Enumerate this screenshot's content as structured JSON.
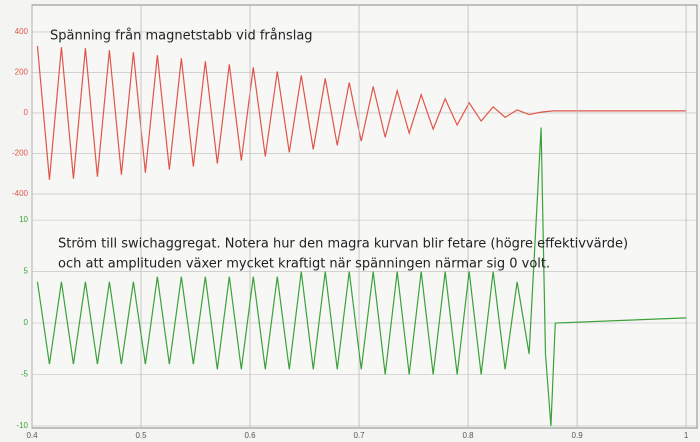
{
  "chart_data": [
    {
      "type": "line",
      "title": "Spänning från magnetstabb vid frånslag",
      "x": [
        0.405,
        0.416,
        0.427,
        0.438,
        0.449,
        0.46,
        0.471,
        0.482,
        0.493,
        0.504,
        0.515,
        0.526,
        0.537,
        0.548,
        0.559,
        0.57,
        0.581,
        0.592,
        0.603,
        0.614,
        0.625,
        0.636,
        0.647,
        0.658,
        0.669,
        0.68,
        0.691,
        0.702,
        0.713,
        0.724,
        0.735,
        0.746,
        0.757,
        0.768,
        0.779,
        0.79,
        0.801,
        0.812,
        0.823,
        0.834,
        0.845,
        0.856,
        0.867,
        0.878,
        1.0
      ],
      "series": [
        {
          "color": "#e0554a",
          "values": [
            330,
            -330,
            325,
            -325,
            320,
            -315,
            310,
            -305,
            300,
            -295,
            285,
            -280,
            270,
            -265,
            255,
            -250,
            240,
            -235,
            225,
            -215,
            205,
            -195,
            185,
            -180,
            170,
            -160,
            150,
            -140,
            130,
            -120,
            110,
            -100,
            90,
            -80,
            70,
            -60,
            50,
            -40,
            30,
            -22,
            15,
            -8,
            4,
            10,
            10
          ]
        }
      ],
      "xlim": [
        0.4,
        1.01
      ],
      "ylim": [
        -1556,
        533
      ],
      "yticks": [
        400,
        200,
        0,
        -200,
        -400
      ],
      "grid": true
    },
    {
      "type": "line",
      "annotation": [
        "Ström till swichaggregat. Notera hur den magra kurvan blir fetare (högre effektivvärde)",
        "och att amplituden växer mycket kraftigt när spänningen närmar sig 0 volt."
      ],
      "x": [
        0.405,
        0.416,
        0.427,
        0.438,
        0.449,
        0.46,
        0.471,
        0.482,
        0.493,
        0.504,
        0.515,
        0.526,
        0.537,
        0.548,
        0.559,
        0.57,
        0.581,
        0.592,
        0.603,
        0.614,
        0.625,
        0.636,
        0.647,
        0.658,
        0.669,
        0.68,
        0.691,
        0.702,
        0.713,
        0.724,
        0.735,
        0.746,
        0.757,
        0.768,
        0.779,
        0.79,
        0.801,
        0.812,
        0.823,
        0.834,
        0.845,
        0.856,
        0.867,
        0.871,
        0.876,
        0.88,
        1.0
      ],
      "series": [
        {
          "color": "#3aa23a",
          "values": [
            4,
            -4,
            4,
            -4,
            4,
            -4,
            4,
            -4,
            4,
            -4,
            4.5,
            -4,
            4.5,
            -4,
            4.5,
            -4.5,
            4.5,
            -4.5,
            4.5,
            -4.5,
            4.5,
            -4.5,
            5,
            -4.5,
            5,
            -4.5,
            5,
            -4.5,
            5,
            -5,
            5,
            -5,
            5,
            -5,
            5,
            -5,
            5,
            -5,
            5,
            -4.5,
            4,
            -3,
            19,
            -3,
            -10,
            0,
            0.5
          ]
        }
      ],
      "xlim": [
        0.4,
        1.01
      ],
      "xticks": [
        0.4,
        0.5,
        0.6,
        0.7,
        0.8,
        0.9,
        1
      ],
      "ylim": [
        -10.2,
        30.9
      ],
      "yticks": [
        10,
        5,
        0,
        -5,
        -10
      ],
      "grid": true
    }
  ]
}
